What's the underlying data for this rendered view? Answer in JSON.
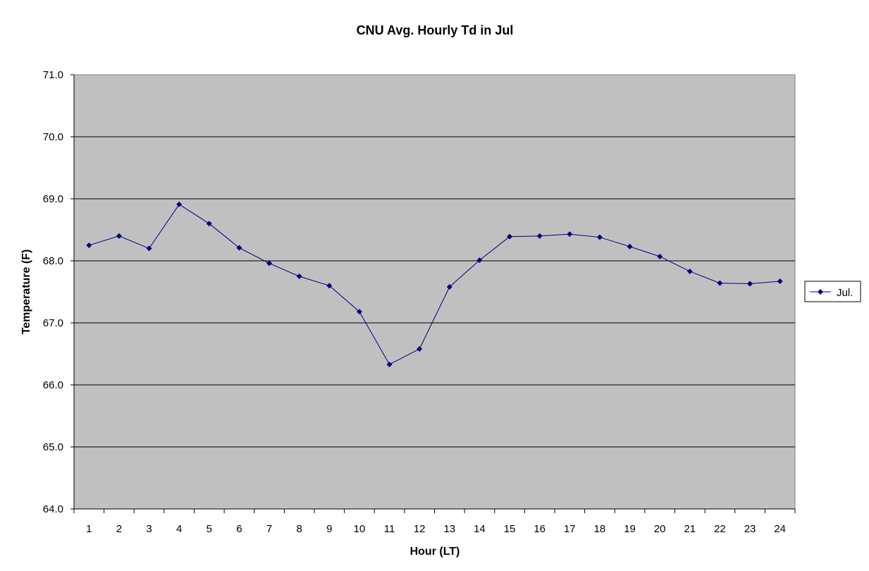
{
  "chart_data": {
    "type": "line",
    "title": "CNU Avg. Hourly Td in Jul",
    "xlabel": "Hour (LT)",
    "ylabel": "Temperature (F)",
    "categories": [
      "1",
      "2",
      "3",
      "4",
      "5",
      "6",
      "7",
      "8",
      "9",
      "10",
      "11",
      "12",
      "13",
      "14",
      "15",
      "16",
      "17",
      "18",
      "19",
      "20",
      "21",
      "22",
      "23",
      "24"
    ],
    "series": [
      {
        "name": "Jul.",
        "values": [
          68.25,
          68.4,
          68.2,
          68.91,
          68.6,
          68.21,
          67.96,
          67.75,
          67.6,
          67.18,
          66.33,
          66.58,
          67.58,
          68.01,
          68.39,
          68.4,
          68.43,
          68.38,
          68.23,
          68.07,
          67.83,
          67.64,
          67.63,
          67.67
        ]
      }
    ],
    "ylim": [
      64.0,
      71.0
    ],
    "yticks": [
      "64.0",
      "65.0",
      "66.0",
      "67.0",
      "68.0",
      "69.0",
      "70.0",
      "71.0"
    ],
    "grid": true,
    "legend": "right",
    "colors": {
      "plot_background": "#c0c0c0",
      "series": "#000080",
      "gridline": "#000000"
    }
  }
}
